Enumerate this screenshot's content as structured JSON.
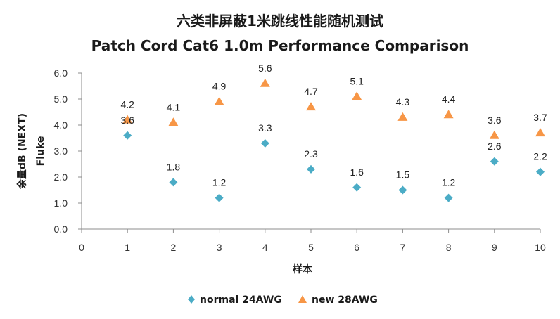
{
  "chart_data": {
    "type": "scatter",
    "title": "六类非屏蔽1米跳线性能随机测试",
    "subtitle": "Patch Cord Cat6 1.0m Performance Comparison",
    "xlabel": "样本",
    "ylabel": "余量dB (NEXT)",
    "ylabel2": "Fluke",
    "xlim": [
      0,
      10
    ],
    "ylim": [
      0.0,
      6.0
    ],
    "x_ticks": [
      "0",
      "1",
      "2",
      "3",
      "4",
      "5",
      "6",
      "7",
      "8",
      "9",
      "10"
    ],
    "y_ticks": [
      "0.0",
      "1.0",
      "2.0",
      "3.0",
      "4.0",
      "5.0",
      "6.0"
    ],
    "legend_position": "bottom",
    "series": [
      {
        "name": "normal 24AWG",
        "marker": "diamond",
        "color": "#4bacc6",
        "x": [
          1,
          2,
          3,
          4,
          5,
          6,
          7,
          8,
          9,
          10
        ],
        "values": [
          3.6,
          1.8,
          1.2,
          3.3,
          2.3,
          1.6,
          1.5,
          1.2,
          2.6,
          2.2
        ],
        "labels": [
          "3.6",
          "1.8",
          "1.2",
          "3.3",
          "2.3",
          "1.6",
          "1.5",
          "1.2",
          "2.6",
          "2.2"
        ]
      },
      {
        "name": "new 28AWG",
        "marker": "triangle",
        "color": "#f79646",
        "x": [
          1,
          2,
          3,
          4,
          5,
          6,
          7,
          8,
          9,
          10
        ],
        "values": [
          4.2,
          4.1,
          4.9,
          5.6,
          4.7,
          5.1,
          4.3,
          4.4,
          3.6,
          3.7
        ],
        "labels": [
          "4.2",
          "4.1",
          "4.9",
          "5.6",
          "4.7",
          "5.1",
          "4.3",
          "4.4",
          "3.6",
          "3.7"
        ]
      }
    ]
  }
}
